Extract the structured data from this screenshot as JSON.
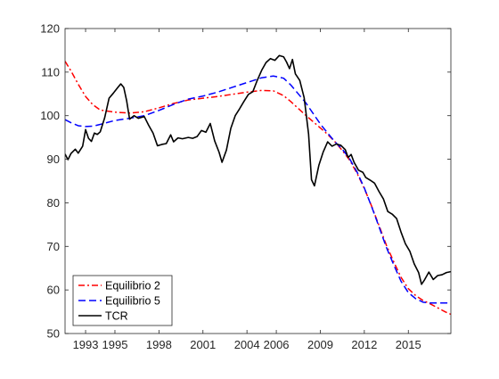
{
  "chart_data": {
    "type": "line",
    "title": "",
    "xlabel": "",
    "ylabel": "",
    "xlim": [
      1991.6,
      2017.9
    ],
    "ylim": [
      50,
      120
    ],
    "xticks": [
      1993,
      1995,
      1998,
      2001,
      2004,
      2006,
      2009,
      2012,
      2015
    ],
    "yticks": [
      50,
      60,
      70,
      80,
      90,
      100,
      110,
      120
    ],
    "grid": false,
    "legend_position": "bottom-left",
    "series": [
      {
        "name": "Equilibrio 2",
        "color": "#ff0000",
        "style": "dash-dot",
        "points": [
          [
            1991.6,
            112.5
          ],
          [
            1992.0,
            110.3
          ],
          [
            1992.5,
            107.2
          ],
          [
            1993.0,
            104.4
          ],
          [
            1993.5,
            102.5
          ],
          [
            1994.0,
            101.3
          ],
          [
            1995.0,
            100.8
          ],
          [
            1996.0,
            100.6
          ],
          [
            1997.0,
            100.9
          ],
          [
            1998.0,
            101.8
          ],
          [
            1999.0,
            102.8
          ],
          [
            2000.0,
            103.6
          ],
          [
            2001.0,
            104.0
          ],
          [
            2002.0,
            104.4
          ],
          [
            2003.0,
            104.9
          ],
          [
            2004.0,
            105.4
          ],
          [
            2005.0,
            105.8
          ],
          [
            2005.8,
            105.7
          ],
          [
            2006.5,
            104.6
          ],
          [
            2007.0,
            103.2
          ],
          [
            2008.0,
            100.1
          ],
          [
            2009.0,
            97.2
          ],
          [
            2009.5,
            95.7
          ],
          [
            2010.0,
            94.0
          ],
          [
            2010.5,
            92.0
          ],
          [
            2011.0,
            89.8
          ],
          [
            2011.5,
            86.8
          ],
          [
            2012.0,
            83.3
          ],
          [
            2012.5,
            79.2
          ],
          [
            2013.0,
            74.8
          ],
          [
            2013.5,
            70.3
          ],
          [
            2014.0,
            66.5
          ],
          [
            2014.5,
            62.9
          ],
          [
            2015.0,
            60.3
          ],
          [
            2015.5,
            58.7
          ],
          [
            2016.0,
            57.6
          ],
          [
            2016.5,
            56.8
          ],
          [
            2017.0,
            55.9
          ],
          [
            2017.5,
            55.0
          ],
          [
            2017.9,
            54.4
          ]
        ]
      },
      {
        "name": "Equilibrio 5",
        "color": "#0000ff",
        "style": "dash",
        "points": [
          [
            1991.6,
            99.1
          ],
          [
            1992.0,
            98.4
          ],
          [
            1992.5,
            97.7
          ],
          [
            1993.0,
            97.5
          ],
          [
            1993.5,
            97.6
          ],
          [
            1994.0,
            98.0
          ],
          [
            1995.0,
            98.9
          ],
          [
            1996.0,
            99.4
          ],
          [
            1997.0,
            100.0
          ],
          [
            1998.0,
            101.2
          ],
          [
            1999.0,
            102.6
          ],
          [
            2000.0,
            103.8
          ],
          [
            2001.0,
            104.5
          ],
          [
            2002.0,
            105.4
          ],
          [
            2003.0,
            106.5
          ],
          [
            2004.0,
            107.6
          ],
          [
            2005.0,
            108.7
          ],
          [
            2005.8,
            109.1
          ],
          [
            2006.5,
            108.6
          ],
          [
            2007.0,
            107.0
          ],
          [
            2008.0,
            103.0
          ],
          [
            2009.0,
            98.1
          ],
          [
            2009.5,
            96.0
          ],
          [
            2010.0,
            94.0
          ],
          [
            2010.5,
            92.3
          ],
          [
            2011.0,
            90.1
          ],
          [
            2011.5,
            87.1
          ],
          [
            2012.0,
            83.4
          ],
          [
            2012.5,
            79.1
          ],
          [
            2013.0,
            74.5
          ],
          [
            2013.5,
            69.8
          ],
          [
            2014.0,
            65.8
          ],
          [
            2014.5,
            62.0
          ],
          [
            2015.0,
            59.4
          ],
          [
            2015.5,
            58.0
          ],
          [
            2016.0,
            57.2
          ],
          [
            2016.5,
            57.0
          ],
          [
            2017.0,
            57.0
          ],
          [
            2017.5,
            57.0
          ],
          [
            2017.9,
            57.0
          ]
        ]
      },
      {
        "name": "TCR",
        "color": "#000000",
        "style": "solid",
        "points": [
          [
            1991.6,
            91.2
          ],
          [
            1991.8,
            89.9
          ],
          [
            1992.0,
            91.3
          ],
          [
            1992.3,
            92.3
          ],
          [
            1992.5,
            91.4
          ],
          [
            1992.8,
            93.0
          ],
          [
            1993.0,
            96.8
          ],
          [
            1993.2,
            94.8
          ],
          [
            1993.4,
            94.1
          ],
          [
            1993.6,
            96.0
          ],
          [
            1993.8,
            95.7
          ],
          [
            1994.0,
            96.3
          ],
          [
            1994.3,
            99.5
          ],
          [
            1994.6,
            104.0
          ],
          [
            1994.9,
            105.2
          ],
          [
            1995.2,
            106.5
          ],
          [
            1995.4,
            107.3
          ],
          [
            1995.6,
            106.5
          ],
          [
            1995.8,
            103.4
          ],
          [
            1996.0,
            99.2
          ],
          [
            1996.3,
            100.0
          ],
          [
            1996.6,
            99.4
          ],
          [
            1997.0,
            99.8
          ],
          [
            1997.3,
            97.8
          ],
          [
            1997.6,
            96.0
          ],
          [
            1997.9,
            93.1
          ],
          [
            1998.2,
            93.4
          ],
          [
            1998.5,
            93.6
          ],
          [
            1998.8,
            95.6
          ],
          [
            1999.0,
            94.0
          ],
          [
            1999.3,
            94.9
          ],
          [
            1999.6,
            94.7
          ],
          [
            2000.0,
            95.0
          ],
          [
            2000.3,
            94.8
          ],
          [
            2000.6,
            95.2
          ],
          [
            2000.9,
            96.6
          ],
          [
            2001.2,
            96.2
          ],
          [
            2001.5,
            98.2
          ],
          [
            2001.8,
            94.2
          ],
          [
            2002.1,
            91.6
          ],
          [
            2002.3,
            89.3
          ],
          [
            2002.6,
            92.1
          ],
          [
            2002.9,
            97.1
          ],
          [
            2003.2,
            100.0
          ],
          [
            2003.5,
            101.6
          ],
          [
            2003.8,
            103.3
          ],
          [
            2004.1,
            104.9
          ],
          [
            2004.4,
            105.5
          ],
          [
            2004.7,
            108.1
          ],
          [
            2005.0,
            110.4
          ],
          [
            2005.3,
            112.2
          ],
          [
            2005.6,
            113.1
          ],
          [
            2005.9,
            112.7
          ],
          [
            2006.2,
            113.8
          ],
          [
            2006.5,
            113.5
          ],
          [
            2006.7,
            112.3
          ],
          [
            2006.9,
            110.8
          ],
          [
            2007.1,
            112.9
          ],
          [
            2007.3,
            109.6
          ],
          [
            2007.6,
            108.1
          ],
          [
            2007.9,
            104.1
          ],
          [
            2008.2,
            95.8
          ],
          [
            2008.4,
            85.3
          ],
          [
            2008.6,
            83.9
          ],
          [
            2008.9,
            88.6
          ],
          [
            2009.2,
            91.7
          ],
          [
            2009.5,
            94.0
          ],
          [
            2009.8,
            93.0
          ],
          [
            2010.1,
            93.5
          ],
          [
            2010.4,
            93.2
          ],
          [
            2010.7,
            92.2
          ],
          [
            2010.9,
            90.4
          ],
          [
            2011.1,
            91.1
          ],
          [
            2011.3,
            89.3
          ],
          [
            2011.6,
            87.5
          ],
          [
            2011.9,
            87.0
          ],
          [
            2012.1,
            85.8
          ],
          [
            2012.4,
            85.2
          ],
          [
            2012.7,
            84.5
          ],
          [
            2013.0,
            82.6
          ],
          [
            2013.3,
            80.9
          ],
          [
            2013.6,
            78.0
          ],
          [
            2013.9,
            77.4
          ],
          [
            2014.2,
            76.4
          ],
          [
            2014.5,
            73.3
          ],
          [
            2014.8,
            70.6
          ],
          [
            2015.1,
            68.9
          ],
          [
            2015.4,
            66.0
          ],
          [
            2015.7,
            64.0
          ],
          [
            2015.9,
            61.3
          ],
          [
            2016.1,
            62.3
          ],
          [
            2016.4,
            64.1
          ],
          [
            2016.7,
            62.4
          ],
          [
            2017.0,
            63.3
          ],
          [
            2017.3,
            63.5
          ],
          [
            2017.6,
            64.0
          ],
          [
            2017.9,
            64.2
          ]
        ]
      }
    ]
  }
}
